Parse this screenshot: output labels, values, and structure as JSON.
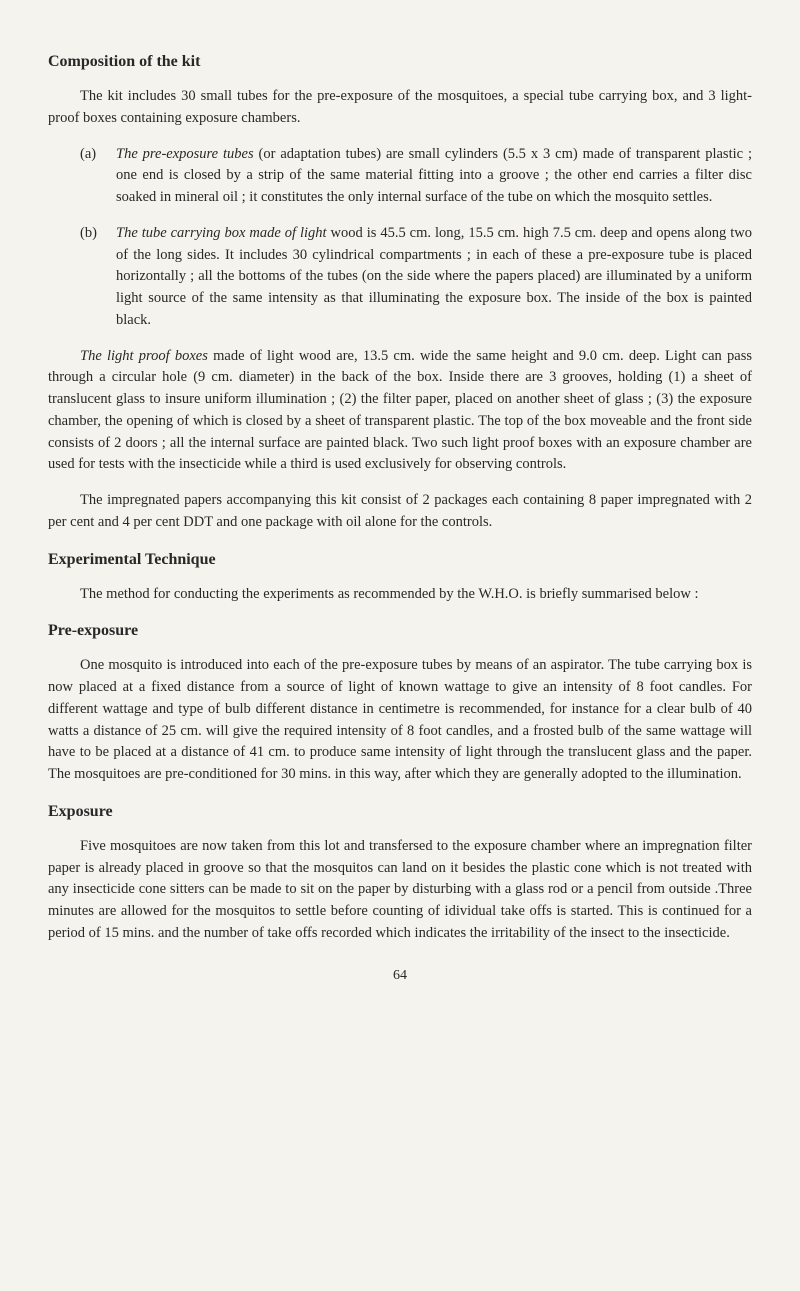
{
  "heading1": "Composition of the kit",
  "para1": "The kit includes 30 small tubes for the pre-exposure of the mosquitoes, a special tube carrying box, and 3 light-proof boxes containing exposure chambers.",
  "itemA_marker": "(a)",
  "itemA_italic": "The pre-exposure tubes",
  "itemA_text": " (or adaptation tubes) are small cylinders (5.5 x 3 cm) made of transparent plastic ; one end is closed by a strip of the same material fitting into a groove ; the other end carries a filter disc soaked in mineral oil ; it constitutes the only internal surface of the tube on which the mosquito settles.",
  "itemB_marker": "(b)",
  "itemB_italic": "The tube carrying box made of light",
  "itemB_text": " wood is 45.5 cm. long, 15.5 cm. high 7.5 cm. deep and opens along two of the long sides. It includes 30 cylindrical compartments ; in each of these a pre-exposure tube is placed horizontally ; all the bottoms of the tubes (on the side where the papers placed) are illuminated by a uniform light source of the same intensity as that illuminating the exposure box. The inside of the box is painted black.",
  "para2_italic": "The light proof boxes",
  "para2_text": " made of light wood are, 13.5 cm. wide the same height and 9.0 cm. deep. Light can pass through a circular hole (9 cm. diameter) in the back of the box. Inside there are 3 grooves, holding (1) a sheet of translucent glass to insure uniform illumination ; (2) the filter paper, placed on another sheet of glass ; (3) the exposure chamber, the opening of which is closed by a sheet of transparent plastic. The top of the box moveable and the front side consists of 2 doors ; all the internal surface are painted black. Two such light proof boxes with an exposure chamber are used for tests with the insecticide while a third is used exclusively for observing controls.",
  "para3": "The impregnated papers accompanying this kit consist of 2 packages each containing 8 paper impregnated with 2 per cent and 4 per cent DDT and one package with oil alone for the controls.",
  "heading2": "Experimental Technique",
  "para4": "The method for conducting the experiments as recommended by the W.H.O. is briefly summarised below :",
  "heading3": "Pre-exposure",
  "para5": "One mosquito is introduced into each of the pre-exposure tubes by means of an aspirator. The tube carrying box is now placed at a fixed distance from a source of light of known wattage to give an intensity of 8 foot candles. For different wattage and type of bulb different distance in centimetre is recommended, for instance for a clear bulb of 40 watts a distance of 25 cm. will give the required intensity of 8 foot candles, and a frosted bulb of the same wattage will have to be placed at a distance of 41 cm. to produce same intensity of light through the translucent glass and the paper. The mosquitoes are pre-conditioned for 30 mins. in this way, after which they are generally adopted to the illumination.",
  "heading4": "Exposure",
  "para6": "Five mosquitoes are now taken from this lot and transfersed to the exposure chamber where an impregnation filter paper is already placed in groove so that the mosquitos can land on it besides the plastic cone which is not treated with any insecticide cone sitters can be made to sit on the paper by disturbing with a glass rod or a pencil from outside .Three minutes are allowed for the mosquitos to settle before counting of idividual take offs is started. This is continued for a period of 15 mins. and the number of take offs recorded which indicates the irritability of the insect to the insecticide.",
  "pageNumber": "64"
}
